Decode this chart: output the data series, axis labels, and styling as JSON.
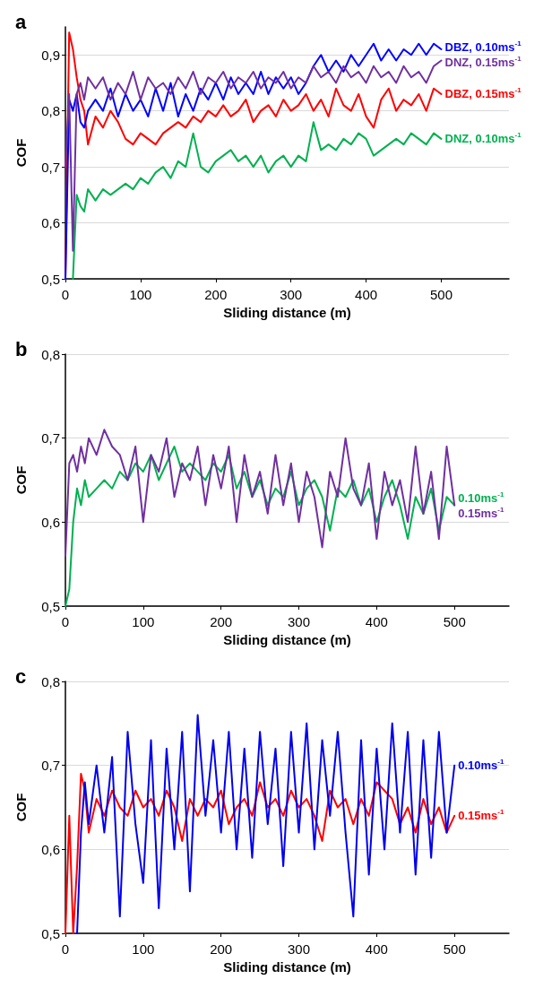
{
  "chart_data": [
    {
      "type": "line",
      "title": "a",
      "xlabel": "Sliding distance (m)",
      "ylabel": "COF",
      "xlim": [
        0,
        590
      ],
      "ylim": [
        0.5,
        0.95
      ],
      "xticks": [
        0,
        100,
        200,
        300,
        400,
        500
      ],
      "yticks": [
        {
          "value": 0.5,
          "label": "0,5"
        },
        {
          "value": 0.6,
          "label": "0,6"
        },
        {
          "value": 0.7,
          "label": "0,7"
        },
        {
          "value": 0.8,
          "label": "0,8"
        },
        {
          "value": 0.9,
          "label": "0,9"
        }
      ],
      "grid": "y",
      "marker": "none",
      "line_style": "solid",
      "legend": false,
      "x": [
        0,
        5,
        10,
        15,
        20,
        25,
        30,
        40,
        50,
        60,
        70,
        80,
        90,
        100,
        110,
        120,
        130,
        140,
        150,
        160,
        170,
        180,
        190,
        200,
        210,
        220,
        230,
        240,
        250,
        260,
        270,
        280,
        290,
        300,
        310,
        320,
        330,
        340,
        350,
        360,
        370,
        380,
        390,
        400,
        410,
        420,
        430,
        440,
        450,
        460,
        470,
        480,
        490,
        500
      ],
      "series": [
        {
          "name": "DNZ, 0.10ms$^{-1}$",
          "color": "#00b050",
          "values": [
            null,
            null,
            0.5,
            0.65,
            0.63,
            0.62,
            0.66,
            0.64,
            0.66,
            0.65,
            0.66,
            0.67,
            0.66,
            0.68,
            0.67,
            0.69,
            0.7,
            0.68,
            0.71,
            0.7,
            0.76,
            0.7,
            0.69,
            0.71,
            0.72,
            0.73,
            0.71,
            0.72,
            0.7,
            0.72,
            0.69,
            0.71,
            0.72,
            0.7,
            0.72,
            0.71,
            0.78,
            0.73,
            0.74,
            0.73,
            0.75,
            0.74,
            0.76,
            0.75,
            0.72,
            0.73,
            0.74,
            0.75,
            0.74,
            0.76,
            0.75,
            0.74,
            0.76,
            0.75
          ]
        },
        {
          "name": "DBZ, 0.15ms$^{-1}$",
          "color": "#ff0000",
          "values": [
            0.5,
            0.94,
            0.91,
            0.86,
            0.82,
            0.8,
            0.74,
            0.79,
            0.77,
            0.8,
            0.78,
            0.75,
            0.74,
            0.76,
            0.75,
            0.74,
            0.76,
            0.77,
            0.78,
            0.77,
            0.79,
            0.78,
            0.8,
            0.79,
            0.81,
            0.79,
            0.8,
            0.82,
            0.78,
            0.8,
            0.81,
            0.79,
            0.82,
            0.8,
            0.81,
            0.83,
            0.8,
            0.82,
            0.79,
            0.84,
            0.81,
            0.8,
            0.83,
            0.79,
            0.77,
            0.82,
            0.84,
            0.8,
            0.82,
            0.81,
            0.83,
            0.8,
            0.84,
            0.83
          ]
        },
        {
          "name": "DBZ, 0.10ms$^{-1}$",
          "color": "#0000ff",
          "values": [
            0.5,
            0.82,
            0.8,
            0.83,
            0.78,
            0.77,
            0.8,
            0.82,
            0.8,
            0.84,
            0.79,
            0.83,
            0.8,
            0.82,
            0.79,
            0.84,
            0.8,
            0.85,
            0.79,
            0.83,
            0.8,
            0.84,
            0.82,
            0.85,
            0.82,
            0.86,
            0.83,
            0.85,
            0.83,
            0.87,
            0.83,
            0.86,
            0.84,
            0.86,
            0.83,
            0.85,
            0.88,
            0.9,
            0.87,
            0.89,
            0.87,
            0.9,
            0.88,
            0.9,
            0.92,
            0.89,
            0.91,
            0.89,
            0.91,
            0.9,
            0.92,
            0.9,
            0.92,
            0.91
          ]
        },
        {
          "name": "DNZ, 0.15ms$^{-1}$",
          "color": "#7030a0",
          "values": [
            0.7,
            0.83,
            0.55,
            0.83,
            0.85,
            0.82,
            0.86,
            0.84,
            0.86,
            0.82,
            0.85,
            0.83,
            0.87,
            0.82,
            0.86,
            0.84,
            0.85,
            0.83,
            0.86,
            0.84,
            0.87,
            0.83,
            0.86,
            0.85,
            0.87,
            0.84,
            0.86,
            0.85,
            0.87,
            0.84,
            0.86,
            0.85,
            0.87,
            0.84,
            0.86,
            0.85,
            0.88,
            0.86,
            0.87,
            0.85,
            0.88,
            0.86,
            0.87,
            0.85,
            0.88,
            0.86,
            0.87,
            0.85,
            0.88,
            0.86,
            0.87,
            0.85,
            0.88,
            0.89
          ]
        }
      ]
    },
    {
      "type": "line",
      "title": "b",
      "xlabel": "Sliding distance (m)",
      "ylabel": "COF",
      "xlim": [
        0,
        570
      ],
      "ylim": [
        0.5,
        0.8
      ],
      "xticks": [
        0,
        100,
        200,
        300,
        400,
        500
      ],
      "yticks": [
        {
          "value": 0.5,
          "label": "0,5"
        },
        {
          "value": 0.6,
          "label": "0,6"
        },
        {
          "value": 0.7,
          "label": "0,7"
        },
        {
          "value": 0.8,
          "label": "0,8"
        }
      ],
      "grid": "y",
      "marker": "none",
      "line_style": "solid",
      "legend": false,
      "x": [
        0,
        5,
        10,
        15,
        20,
        25,
        30,
        40,
        50,
        60,
        70,
        80,
        90,
        100,
        110,
        120,
        130,
        140,
        150,
        160,
        170,
        180,
        190,
        200,
        210,
        220,
        230,
        240,
        250,
        260,
        270,
        280,
        290,
        300,
        310,
        320,
        330,
        340,
        350,
        360,
        370,
        380,
        390,
        400,
        410,
        420,
        430,
        440,
        450,
        460,
        470,
        480,
        490,
        500
      ],
      "series": [
        {
          "name": "0.10ms$^{-1}$",
          "color": "#00b050",
          "values": [
            0.5,
            0.52,
            0.6,
            0.64,
            0.62,
            0.65,
            0.63,
            0.64,
            0.65,
            0.64,
            0.66,
            0.65,
            0.67,
            0.66,
            0.68,
            0.65,
            0.67,
            0.69,
            0.66,
            0.67,
            0.66,
            0.65,
            0.67,
            0.66,
            0.68,
            0.64,
            0.66,
            0.63,
            0.65,
            0.62,
            0.64,
            0.63,
            0.66,
            0.62,
            0.64,
            0.65,
            0.63,
            0.59,
            0.64,
            0.63,
            0.65,
            0.62,
            0.64,
            0.6,
            0.63,
            0.65,
            0.62,
            0.58,
            0.63,
            0.61,
            0.64,
            0.59,
            0.63,
            0.62
          ]
        },
        {
          "name": "0.15ms$^{-1}$",
          "color": "#7030a0",
          "values": [
            0.56,
            0.67,
            0.68,
            0.66,
            0.69,
            0.67,
            0.7,
            0.68,
            0.71,
            0.69,
            0.68,
            0.65,
            0.69,
            0.6,
            0.68,
            0.66,
            0.7,
            0.63,
            0.67,
            0.65,
            0.69,
            0.62,
            0.68,
            0.64,
            0.69,
            0.6,
            0.68,
            0.63,
            0.66,
            0.61,
            0.68,
            0.62,
            0.67,
            0.6,
            0.66,
            0.63,
            0.57,
            0.66,
            0.63,
            0.7,
            0.64,
            0.62,
            0.67,
            0.58,
            0.66,
            0.62,
            0.65,
            0.6,
            0.69,
            0.61,
            0.66,
            0.58,
            0.69,
            0.62
          ]
        }
      ]
    },
    {
      "type": "line",
      "title": "c",
      "xlabel": "Sliding distance (m)",
      "ylabel": "COF",
      "xlim": [
        0,
        570
      ],
      "ylim": [
        0.5,
        0.8
      ],
      "xticks": [
        0,
        100,
        200,
        300,
        400,
        500
      ],
      "yticks": [
        {
          "value": 0.5,
          "label": "0,5"
        },
        {
          "value": 0.6,
          "label": "0,6"
        },
        {
          "value": 0.7,
          "label": "0,7"
        },
        {
          "value": 0.8,
          "label": "0,8"
        }
      ],
      "grid": "y",
      "marker": "none",
      "line_style": "solid",
      "legend": false,
      "x": [
        0,
        5,
        10,
        15,
        20,
        25,
        30,
        40,
        50,
        60,
        70,
        80,
        90,
        100,
        110,
        120,
        130,
        140,
        150,
        160,
        170,
        180,
        190,
        200,
        210,
        220,
        230,
        240,
        250,
        260,
        270,
        280,
        290,
        300,
        310,
        320,
        330,
        340,
        350,
        360,
        370,
        380,
        390,
        400,
        410,
        420,
        430,
        440,
        450,
        460,
        470,
        480,
        490,
        500
      ],
      "series": [
        {
          "name": "0.15ms$^{-1}$",
          "color": "#ff0000",
          "values": [
            0.5,
            0.64,
            0.5,
            0.58,
            0.69,
            0.67,
            0.62,
            0.66,
            0.64,
            0.67,
            0.65,
            0.64,
            0.67,
            0.65,
            0.66,
            0.64,
            0.67,
            0.65,
            0.61,
            0.66,
            0.64,
            0.66,
            0.65,
            0.67,
            0.63,
            0.65,
            0.66,
            0.64,
            0.68,
            0.65,
            0.66,
            0.64,
            0.67,
            0.65,
            0.66,
            0.64,
            0.61,
            0.67,
            0.65,
            0.66,
            0.63,
            0.66,
            0.64,
            0.68,
            0.67,
            0.66,
            0.63,
            0.65,
            0.62,
            0.66,
            0.63,
            0.65,
            0.62,
            0.64
          ]
        },
        {
          "name": "0.10ms$^{-1}$",
          "color": "#0000ee",
          "values": [
            null,
            null,
            null,
            0.5,
            0.62,
            0.68,
            0.63,
            0.7,
            0.62,
            0.71,
            0.52,
            0.74,
            0.63,
            0.56,
            0.73,
            0.53,
            0.72,
            0.6,
            0.74,
            0.55,
            0.76,
            0.64,
            0.73,
            0.62,
            0.74,
            0.6,
            0.72,
            0.59,
            0.74,
            0.63,
            0.72,
            0.58,
            0.74,
            0.62,
            0.75,
            0.6,
            0.73,
            0.64,
            0.74,
            0.62,
            0.52,
            0.73,
            0.57,
            0.72,
            0.6,
            0.75,
            0.62,
            0.74,
            0.57,
            0.73,
            0.59,
            0.74,
            0.62,
            0.7
          ]
        }
      ]
    }
  ]
}
